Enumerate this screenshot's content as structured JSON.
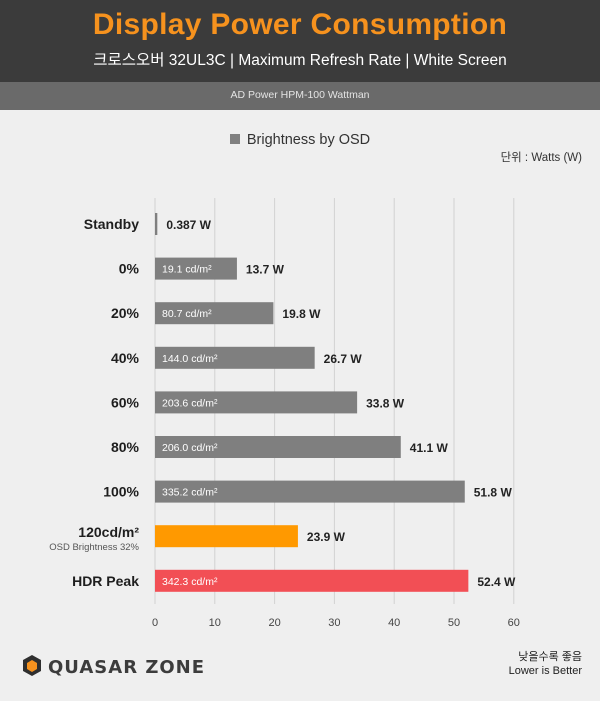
{
  "header": {
    "title": "Display Power Consumption",
    "subtitle": "크로스오버 32UL3C  |  Maximum Refresh Rate  |  White Screen",
    "source": "AD Power HPM-100 Wattman"
  },
  "legend": {
    "label": "Brightness by OSD"
  },
  "units": "단위 : Watts (W)",
  "footer": {
    "line1": "낮을수록 좋음",
    "line2": "Lower is Better",
    "brand": "QUASAR ZONE"
  },
  "colors": {
    "gray": "#7f7f7f",
    "orange": "#ff9900",
    "red": "#f24f55",
    "header_bg": "#3b3b3b",
    "title": "#f6921e"
  },
  "chart_data": {
    "type": "bar",
    "orientation": "horizontal",
    "xlim": [
      0,
      60
    ],
    "xticks": [
      0,
      10,
      20,
      30,
      40,
      50,
      60
    ],
    "grid": true,
    "bars": [
      {
        "category": "Standby",
        "value": 0.387,
        "value_label": "0.387 W",
        "inner_label": "",
        "sub_label": "",
        "color": "gray"
      },
      {
        "category": "0%",
        "value": 13.7,
        "value_label": "13.7 W",
        "inner_label": "19.1 cd/m²",
        "sub_label": "",
        "color": "gray"
      },
      {
        "category": "20%",
        "value": 19.8,
        "value_label": "19.8 W",
        "inner_label": "80.7 cd/m²",
        "sub_label": "",
        "color": "gray"
      },
      {
        "category": "40%",
        "value": 26.7,
        "value_label": "26.7 W",
        "inner_label": "144.0 cd/m²",
        "sub_label": "",
        "color": "gray"
      },
      {
        "category": "60%",
        "value": 33.8,
        "value_label": "33.8 W",
        "inner_label": "203.6 cd/m²",
        "sub_label": "",
        "color": "gray"
      },
      {
        "category": "80%",
        "value": 41.1,
        "value_label": "41.1 W",
        "inner_label": "206.0 cd/m²",
        "sub_label": "",
        "color": "gray"
      },
      {
        "category": "100%",
        "value": 51.8,
        "value_label": "51.8 W",
        "inner_label": "335.2 cd/m²",
        "sub_label": "",
        "color": "gray"
      },
      {
        "category": "120cd/m²",
        "value": 23.9,
        "value_label": "23.9 W",
        "inner_label": "",
        "sub_label": "OSD Brightness 32%",
        "color": "orange"
      },
      {
        "category": "HDR Peak",
        "value": 52.4,
        "value_label": "52.4 W",
        "inner_label": "342.3 cd/m²",
        "sub_label": "",
        "color": "red"
      }
    ]
  }
}
